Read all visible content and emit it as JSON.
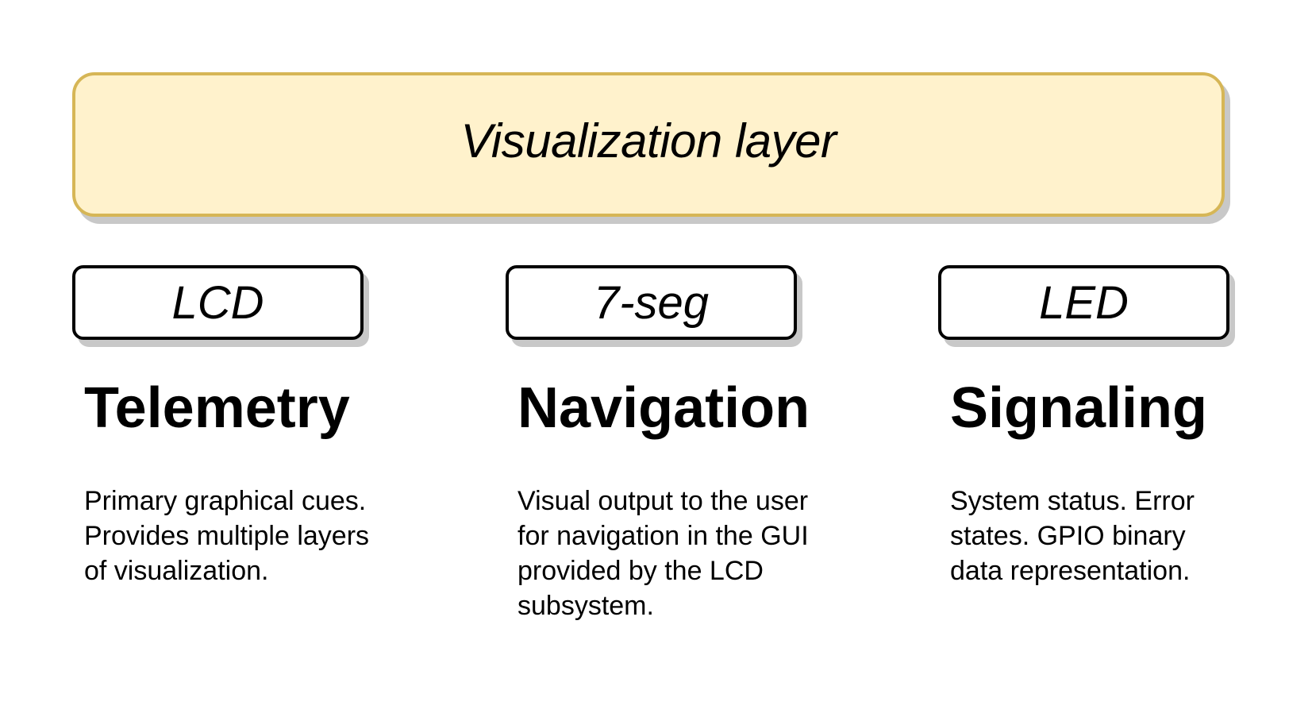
{
  "layer": {
    "title": "Visualization layer"
  },
  "columns": [
    {
      "display": "LCD",
      "heading": "Telemetry",
      "lines": [
        "Primary graphical cues.",
        "Provides multiple layers",
        "of visualization."
      ]
    },
    {
      "display": "7-seg",
      "heading": "Navigation",
      "lines": [
        "Visual output to the user",
        "for navigation in the GUI",
        "provided by the LCD",
        "subsystem."
      ]
    },
    {
      "display": "LED",
      "heading": "Signaling",
      "lines": [
        "System status. Error",
        "states. GPIO binary",
        "data representation."
      ]
    }
  ],
  "colors": {
    "layer_fill": "#fff2cc",
    "layer_stroke": "#d6b656",
    "box_stroke": "#000000",
    "shadow": "#c8c8c8"
  }
}
